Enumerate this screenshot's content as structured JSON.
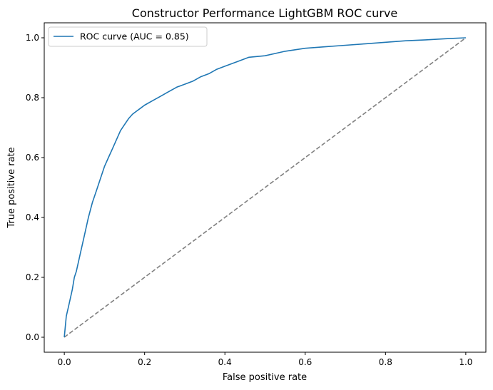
{
  "chart_data": {
    "type": "line",
    "title": "Constructor Performance LightGBM ROC curve",
    "xlabel": "False positive rate",
    "ylabel": "True positive rate",
    "xlim": [
      -0.05,
      1.05
    ],
    "ylim": [
      -0.05,
      1.05
    ],
    "xticks": [
      0.0,
      0.2,
      0.4,
      0.6,
      0.8,
      1.0
    ],
    "yticks": [
      0.0,
      0.2,
      0.4,
      0.6,
      0.8,
      1.0
    ],
    "tick_labels": [
      "0.0",
      "0.2",
      "0.4",
      "0.6",
      "0.8",
      "1.0"
    ],
    "grid": false,
    "legend_position": "top-left",
    "series": [
      {
        "name": "ROC curve (AUC = 0.85)",
        "color": "#1f77b4",
        "style": "solid",
        "x": [
          0.0,
          0.002,
          0.005,
          0.01,
          0.015,
          0.02,
          0.025,
          0.03,
          0.04,
          0.05,
          0.06,
          0.07,
          0.08,
          0.09,
          0.1,
          0.11,
          0.12,
          0.13,
          0.14,
          0.15,
          0.16,
          0.17,
          0.18,
          0.19,
          0.2,
          0.22,
          0.24,
          0.26,
          0.28,
          0.3,
          0.32,
          0.34,
          0.36,
          0.38,
          0.4,
          0.43,
          0.46,
          0.5,
          0.55,
          0.6,
          0.65,
          0.7,
          0.75,
          0.8,
          0.85,
          0.9,
          0.95,
          1.0
        ],
        "y": [
          0.0,
          0.03,
          0.07,
          0.1,
          0.13,
          0.16,
          0.2,
          0.22,
          0.28,
          0.34,
          0.4,
          0.45,
          0.49,
          0.53,
          0.57,
          0.6,
          0.63,
          0.66,
          0.69,
          0.71,
          0.73,
          0.745,
          0.755,
          0.765,
          0.775,
          0.79,
          0.805,
          0.82,
          0.835,
          0.845,
          0.855,
          0.87,
          0.88,
          0.895,
          0.905,
          0.92,
          0.935,
          0.94,
          0.955,
          0.965,
          0.97,
          0.975,
          0.98,
          0.985,
          0.99,
          0.993,
          0.997,
          1.0
        ]
      },
      {
        "name": "",
        "color": "#808080",
        "style": "dashed",
        "x": [
          0.0,
          1.0
        ],
        "y": [
          0.0,
          1.0
        ]
      }
    ]
  }
}
